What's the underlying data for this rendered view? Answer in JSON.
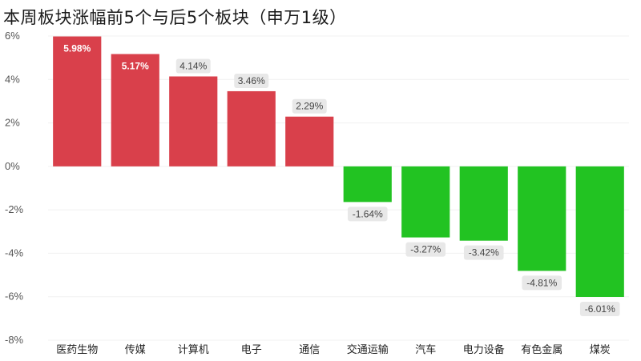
{
  "title": "本周板块涨幅前5个与后5个板块（申万1级）",
  "chart_data": {
    "type": "bar",
    "title": "本周板块涨幅前5个与后5个板块（申万1级）",
    "xlabel": "",
    "ylabel": "",
    "categories": [
      "医药生物",
      "传媒",
      "计算机",
      "电子",
      "通信",
      "交通运输",
      "汽车",
      "电力设备",
      "有色金属",
      "煤炭"
    ],
    "values": [
      5.98,
      5.17,
      4.14,
      3.46,
      2.29,
      -1.64,
      -3.27,
      -3.42,
      -4.81,
      -6.01
    ],
    "data_labels": [
      "5.98%",
      "5.17%",
      "4.14%",
      "3.46%",
      "2.29%",
      "-1.64%",
      "-3.27%",
      "-3.42%",
      "-4.81%",
      "-6.01%"
    ],
    "ylim": [
      -8,
      6
    ],
    "yticks": [
      6,
      4,
      2,
      0,
      -2,
      -4,
      -6,
      -8
    ],
    "ytick_labels": [
      "6%",
      "4%",
      "2%",
      "0%",
      "-2%",
      "-4%",
      "-6%",
      "-8%"
    ],
    "grid": true,
    "legend": "none",
    "colors": {
      "positive": "#d9404b",
      "negative": "#22c322",
      "label_box": "#e8e8e8",
      "gridline": "#f0f0f0"
    }
  }
}
